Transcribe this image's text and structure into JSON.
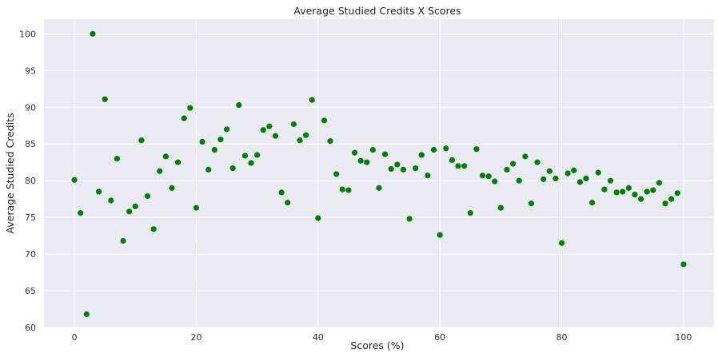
{
  "chart_data": {
    "type": "scatter",
    "title": "Average Studied Credits X Scores",
    "xlabel": "Scores (%)",
    "ylabel": "Average Studied Credits",
    "xlim": [
      -5,
      105
    ],
    "ylim": [
      60,
      102
    ],
    "xticks": [
      0,
      20,
      40,
      60,
      80,
      100
    ],
    "yticks": [
      60,
      65,
      70,
      75,
      80,
      85,
      90,
      95,
      100
    ],
    "grid": true,
    "background": "#eaeaf2",
    "grid_color": "#ffffff",
    "point_color": "#008000",
    "series": [
      {
        "x": [
          0,
          1,
          2,
          3,
          4,
          5,
          6,
          7,
          8,
          9,
          10,
          11,
          12,
          13,
          14,
          15,
          16,
          17,
          18,
          19,
          20,
          21,
          22,
          23,
          24,
          25,
          26,
          27,
          28,
          29,
          30,
          31,
          32,
          33,
          34,
          35,
          36,
          37,
          38,
          39,
          40,
          41,
          42,
          43,
          44,
          45,
          46,
          47,
          48,
          49,
          50,
          51,
          52,
          53,
          54,
          55,
          56,
          57,
          58,
          59,
          60,
          61,
          62,
          63,
          64,
          65,
          66,
          67,
          68,
          69,
          70,
          71,
          72,
          73,
          74,
          75,
          76,
          77,
          78,
          79,
          80,
          81,
          82,
          83,
          84,
          85,
          86,
          87,
          88,
          89,
          90,
          91,
          92,
          93,
          94,
          95,
          96,
          97,
          98,
          99,
          100
        ],
        "y": [
          80.1,
          75.6,
          61.8,
          100,
          78.5,
          91.1,
          77.3,
          83,
          71.8,
          75.8,
          76.5,
          85.5,
          77.9,
          73.4,
          81.3,
          83.3,
          79,
          82.5,
          88.5,
          89.9,
          76.3,
          85.3,
          81.5,
          84.2,
          85.6,
          87,
          81.7,
          90.3,
          83.4,
          82.4,
          83.5,
          86.9,
          87.4,
          86.1,
          78.4,
          77,
          87.7,
          85.5,
          86.2,
          91,
          74.9,
          88.2,
          85.4,
          80.9,
          78.8,
          78.7,
          83.8,
          82.7,
          82.5,
          84.2,
          79,
          83.6,
          81.6,
          82.2,
          81.5,
          74.8,
          81.7,
          83.5,
          80.7,
          84.2,
          72.6,
          84.4,
          82.8,
          82,
          82,
          75.6,
          84.3,
          80.7,
          80.6,
          79.9,
          76.3,
          81.5,
          82.3,
          80,
          83.3,
          76.9,
          82.5,
          80.2,
          81.3,
          80.3,
          71.5,
          81,
          81.4,
          79.8,
          80.3,
          77,
          81.1,
          78.8,
          80,
          78.4,
          78.5,
          79,
          78.1,
          77.5,
          78.5,
          78.7,
          79.7,
          76.9,
          77.5,
          78.3,
          68.6
        ]
      }
    ]
  }
}
